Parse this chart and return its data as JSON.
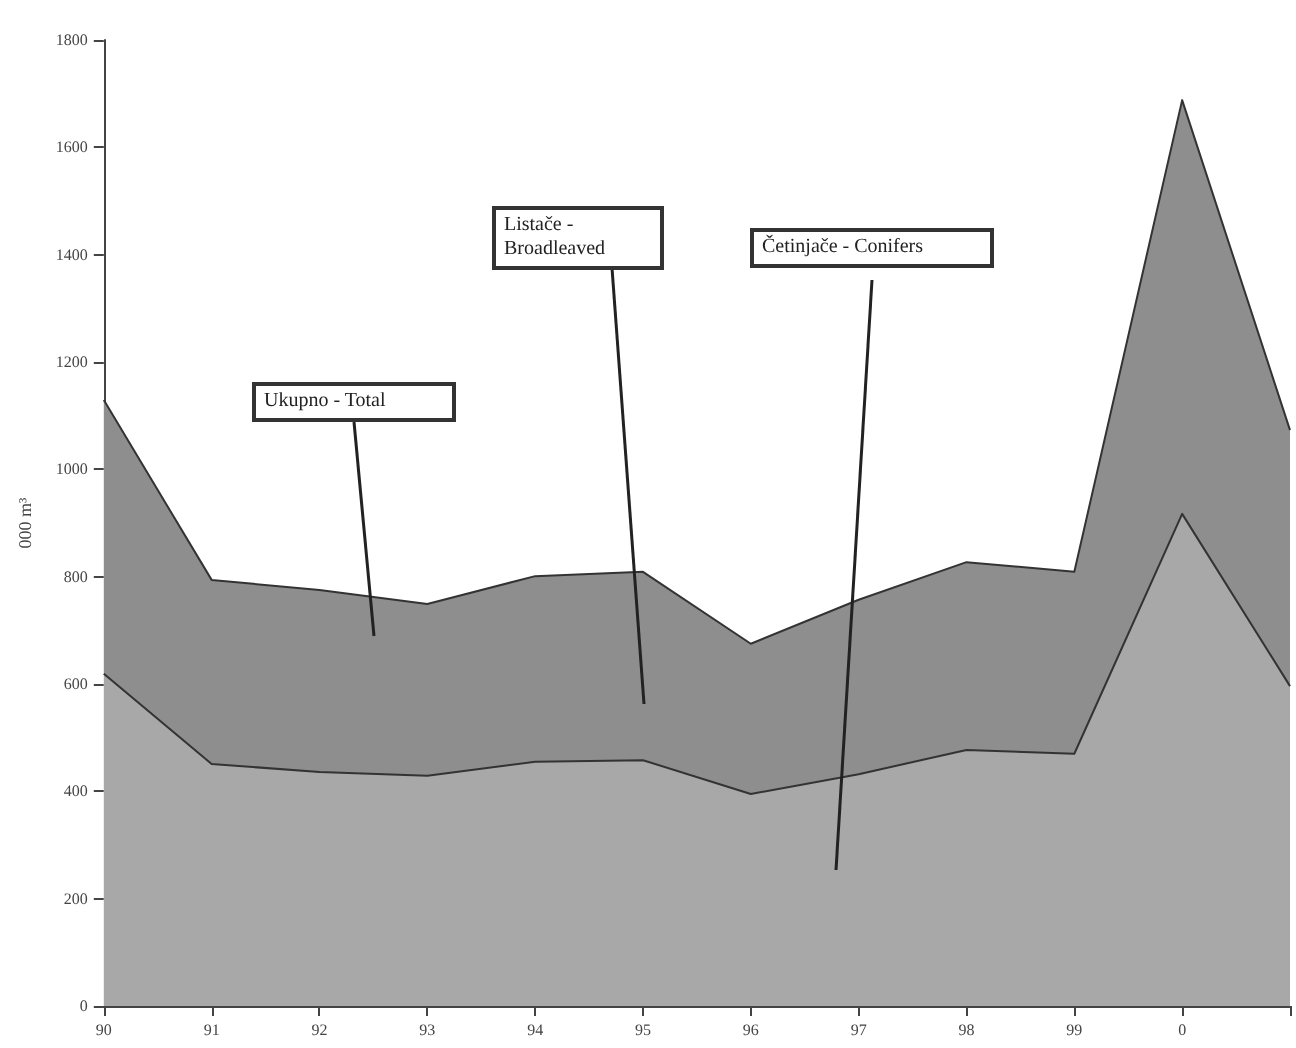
{
  "chart_data": {
    "type": "area",
    "stacked": true,
    "ylabel": "000 m³",
    "categories": [
      "90",
      "91",
      "92",
      "93",
      "94",
      "95",
      "96",
      "97",
      "98",
      "99",
      "0",
      null
    ],
    "series": [
      {
        "color": "#a8a8a8",
        "values": [
          619,
          451,
          436,
          429,
          455,
          458,
          395,
          432,
          477,
          470,
          917,
          596
        ]
      },
      {
        "color": "#8e8e8e",
        "values": [
          510,
          343,
          339,
          320,
          346,
          351,
          280,
          325,
          350,
          339,
          771,
          477
        ]
      }
    ],
    "ylim": [
      0,
      1800
    ],
    "yticks": [
      0,
      200,
      400,
      600,
      800,
      1000,
      1200,
      1400,
      1600,
      1800
    ],
    "grid": false,
    "annotations": [
      "Ukupno - Total",
      "Listače - Broadleaved",
      "Četinjače - Conifers"
    ]
  }
}
